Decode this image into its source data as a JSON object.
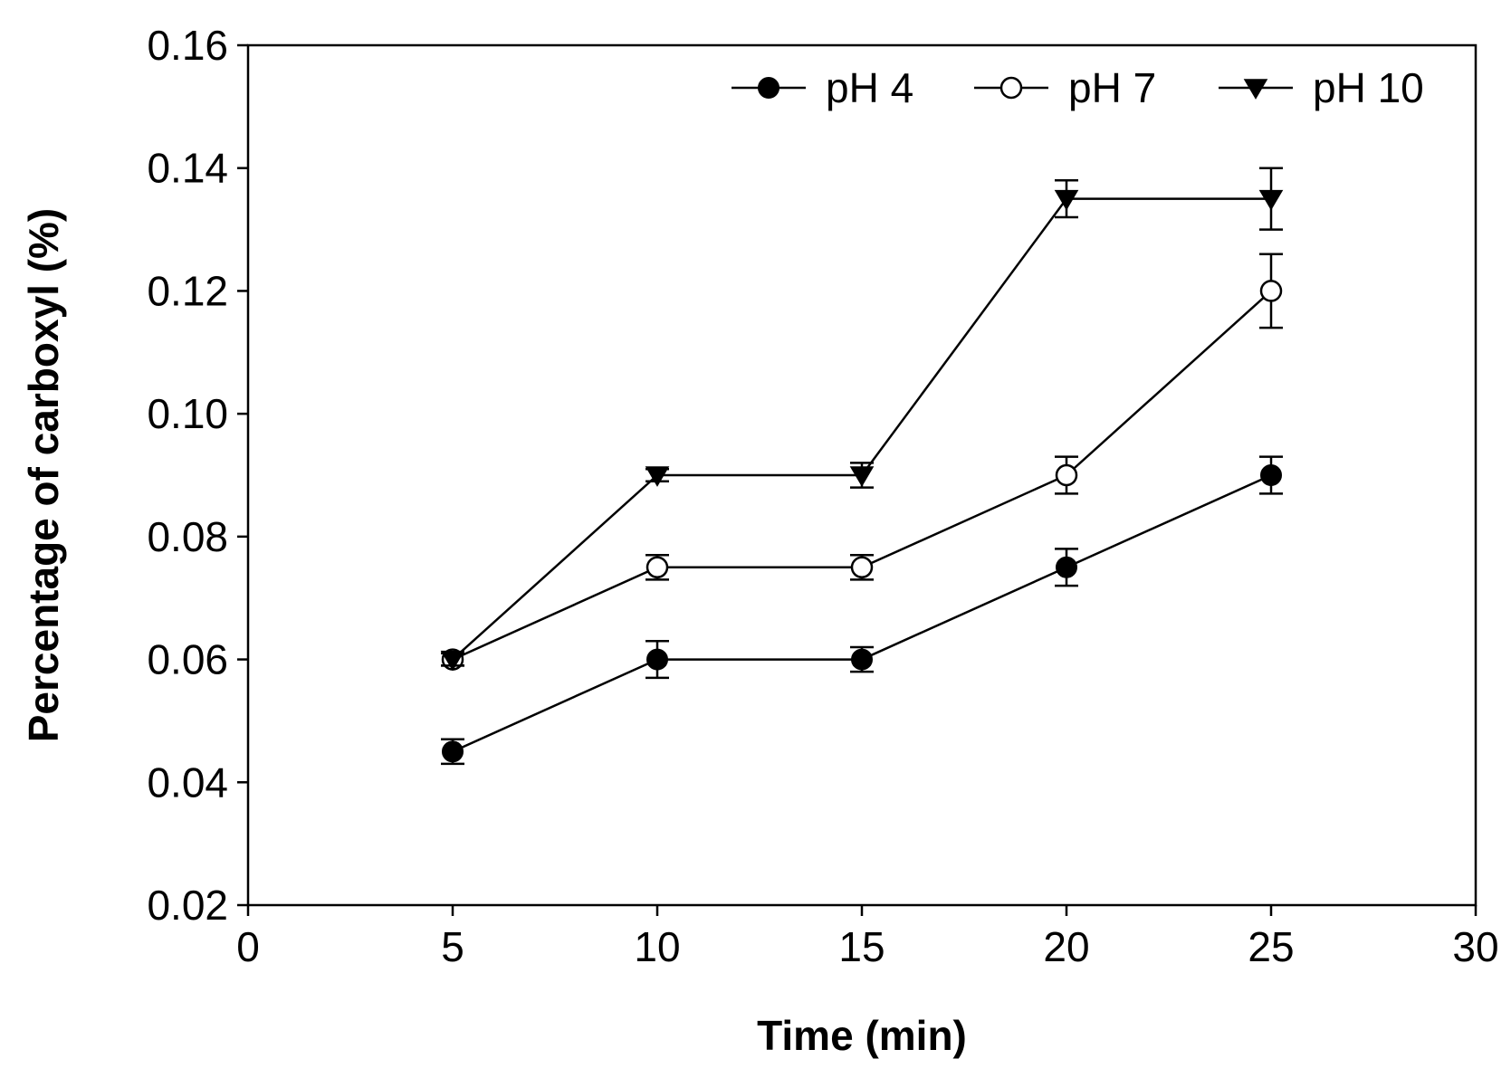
{
  "chart_data": {
    "type": "line",
    "title": "",
    "xlabel": "Time (min)",
    "ylabel": "Percentage of carboxyl (%)",
    "xlim": [
      0,
      30
    ],
    "ylim": [
      0.02,
      0.16
    ],
    "xticks": [
      0,
      5,
      10,
      15,
      20,
      25,
      30
    ],
    "yticks": [
      0.02,
      0.04,
      0.06,
      0.08,
      0.1,
      0.12,
      0.14,
      0.16
    ],
    "xtick_labels": [
      "0",
      "5",
      "10",
      "15",
      "20",
      "25",
      "30"
    ],
    "ytick_labels": [
      "0.02",
      "0.04",
      "0.06",
      "0.08",
      "0.10",
      "0.12",
      "0.14",
      "0.16"
    ],
    "grid": false,
    "legend_position": "top-right",
    "x": [
      5,
      10,
      15,
      20,
      25
    ],
    "series": [
      {
        "name": "pH 4",
        "marker": "filled-circle",
        "color": "#000000",
        "values": [
          0.045,
          0.06,
          0.06,
          0.075,
          0.09
        ],
        "errors": [
          0.002,
          0.003,
          0.002,
          0.003,
          0.003
        ]
      },
      {
        "name": "pH 7",
        "marker": "open-circle",
        "color": "#000000",
        "values": [
          0.06,
          0.075,
          0.075,
          0.09,
          0.12
        ],
        "errors": [
          0.001,
          0.002,
          0.002,
          0.003,
          0.006
        ]
      },
      {
        "name": "pH 10",
        "marker": "filled-triangle-down",
        "color": "#000000",
        "values": [
          0.06,
          0.09,
          0.09,
          0.135,
          0.135
        ],
        "errors": [
          0.001,
          0.001,
          0.002,
          0.003,
          0.005
        ]
      }
    ]
  }
}
